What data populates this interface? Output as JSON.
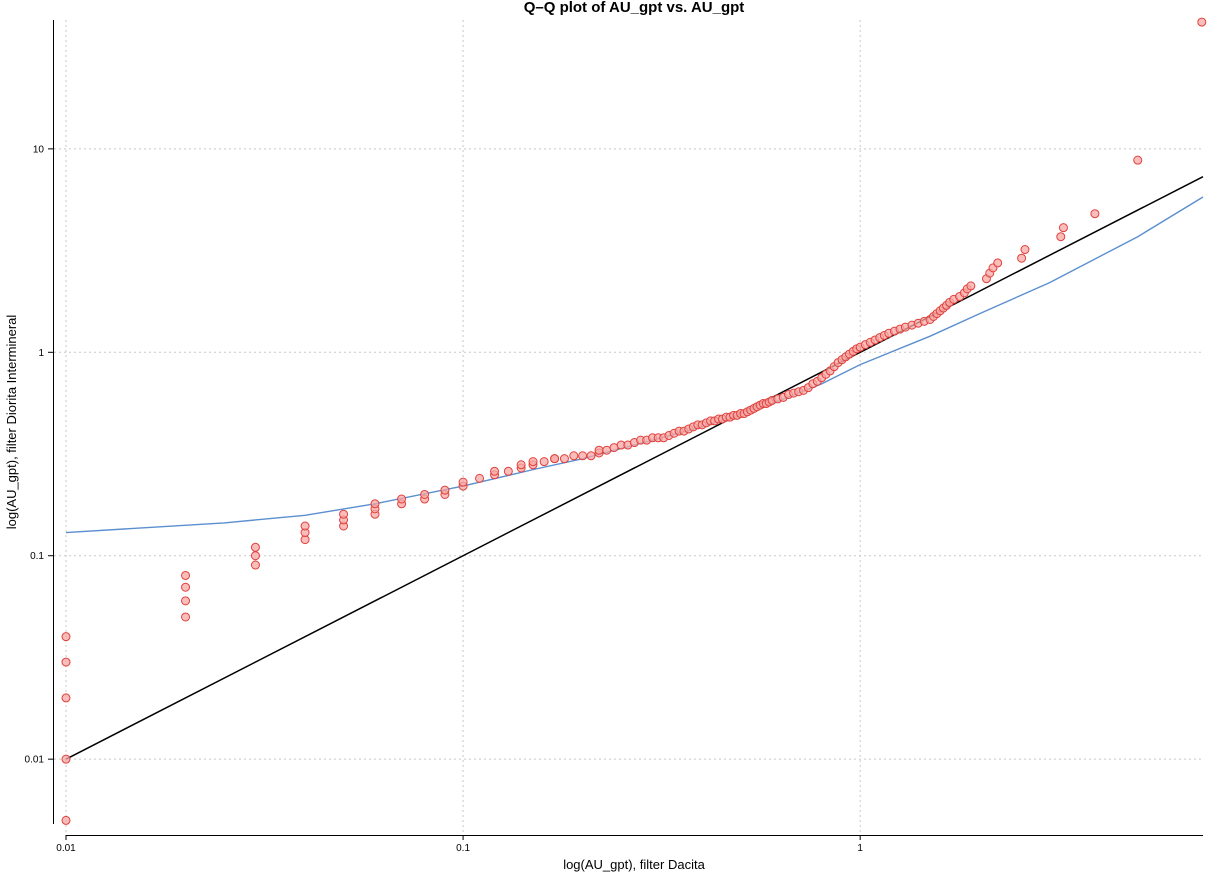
{
  "chart_data": {
    "type": "scatter",
    "title": "Q–Q plot of AU_gpt vs. AU_gpt",
    "xlabel": "log(AU_gpt), filter Dacita",
    "ylabel": "log(AU_gpt), filter Diorita Intermineral",
    "xscale": "log",
    "yscale": "log",
    "xlim": [
      0.01,
      7.3
    ],
    "ylim": [
      0.0048,
      43
    ],
    "grid": true,
    "x_ticks": [
      {
        "value": 0.01,
        "label": "0.01"
      },
      {
        "value": 0.1,
        "label": "0.1"
      },
      {
        "value": 1,
        "label": "1"
      }
    ],
    "y_ticks": [
      {
        "value": 0.01,
        "label": "0.01"
      },
      {
        "value": 0.1,
        "label": "0.1"
      },
      {
        "value": 1,
        "label": "1"
      },
      {
        "value": 10,
        "label": "10"
      }
    ],
    "marker_color": "#e0403c",
    "marker_fill": "#f7a8a4",
    "reference_line": {
      "color": "#000000",
      "points": [
        [
          0.01,
          0.01
        ],
        [
          7.3,
          7.3
        ]
      ]
    },
    "fit_line": {
      "color": "#5b8fcf",
      "x": [
        0.01,
        0.025,
        0.04,
        0.06,
        0.1,
        0.15,
        0.2,
        0.3,
        0.4,
        0.5,
        0.6,
        0.8,
        1.0,
        1.5,
        2.0,
        3.0,
        5.0,
        7.3
      ],
      "y": [
        0.13,
        0.145,
        0.158,
        0.18,
        0.22,
        0.265,
        0.3,
        0.37,
        0.43,
        0.5,
        0.56,
        0.7,
        0.87,
        1.2,
        1.55,
        2.2,
        3.7,
        5.8
      ]
    },
    "points": [
      [
        0.01,
        0.005
      ],
      [
        0.01,
        0.01
      ],
      [
        0.01,
        0.02
      ],
      [
        0.01,
        0.03
      ],
      [
        0.01,
        0.04
      ],
      [
        0.02,
        0.05
      ],
      [
        0.02,
        0.06
      ],
      [
        0.02,
        0.07
      ],
      [
        0.02,
        0.08
      ],
      [
        0.03,
        0.09
      ],
      [
        0.03,
        0.1
      ],
      [
        0.03,
        0.11
      ],
      [
        0.04,
        0.12
      ],
      [
        0.04,
        0.13
      ],
      [
        0.04,
        0.14
      ],
      [
        0.05,
        0.14
      ],
      [
        0.05,
        0.15
      ],
      [
        0.05,
        0.16
      ],
      [
        0.06,
        0.16
      ],
      [
        0.06,
        0.17
      ],
      [
        0.06,
        0.18
      ],
      [
        0.07,
        0.18
      ],
      [
        0.07,
        0.19
      ],
      [
        0.08,
        0.19
      ],
      [
        0.08,
        0.2
      ],
      [
        0.09,
        0.2
      ],
      [
        0.09,
        0.21
      ],
      [
        0.1,
        0.22
      ],
      [
        0.1,
        0.23
      ],
      [
        0.11,
        0.24
      ],
      [
        0.12,
        0.25
      ],
      [
        0.12,
        0.26
      ],
      [
        0.13,
        0.26
      ],
      [
        0.14,
        0.27
      ],
      [
        0.14,
        0.28
      ],
      [
        0.15,
        0.28
      ],
      [
        0.15,
        0.29
      ],
      [
        0.16,
        0.29
      ],
      [
        0.17,
        0.3
      ],
      [
        0.17,
        0.3
      ],
      [
        0.18,
        0.3
      ],
      [
        0.19,
        0.31
      ],
      [
        0.2,
        0.31
      ],
      [
        0.21,
        0.31
      ],
      [
        0.22,
        0.32
      ],
      [
        0.22,
        0.33
      ],
      [
        0.23,
        0.33
      ],
      [
        0.24,
        0.34
      ],
      [
        0.25,
        0.35
      ],
      [
        0.26,
        0.35
      ],
      [
        0.27,
        0.36
      ],
      [
        0.28,
        0.37
      ],
      [
        0.29,
        0.37
      ],
      [
        0.3,
        0.38
      ],
      [
        0.31,
        0.38
      ],
      [
        0.32,
        0.38
      ],
      [
        0.33,
        0.39
      ],
      [
        0.34,
        0.4
      ],
      [
        0.35,
        0.41
      ],
      [
        0.36,
        0.41
      ],
      [
        0.37,
        0.42
      ],
      [
        0.38,
        0.43
      ],
      [
        0.39,
        0.44
      ],
      [
        0.4,
        0.44
      ],
      [
        0.41,
        0.45
      ],
      [
        0.42,
        0.46
      ],
      [
        0.43,
        0.46
      ],
      [
        0.44,
        0.47
      ],
      [
        0.45,
        0.47
      ],
      [
        0.46,
        0.48
      ],
      [
        0.47,
        0.48
      ],
      [
        0.48,
        0.49
      ],
      [
        0.49,
        0.49
      ],
      [
        0.5,
        0.5
      ],
      [
        0.51,
        0.5
      ],
      [
        0.52,
        0.51
      ],
      [
        0.53,
        0.52
      ],
      [
        0.54,
        0.53
      ],
      [
        0.55,
        0.54
      ],
      [
        0.56,
        0.55
      ],
      [
        0.57,
        0.56
      ],
      [
        0.58,
        0.56
      ],
      [
        0.59,
        0.57
      ],
      [
        0.6,
        0.58
      ],
      [
        0.62,
        0.59
      ],
      [
        0.64,
        0.6
      ],
      [
        0.66,
        0.62
      ],
      [
        0.68,
        0.63
      ],
      [
        0.7,
        0.64
      ],
      [
        0.72,
        0.65
      ],
      [
        0.74,
        0.67
      ],
      [
        0.76,
        0.7
      ],
      [
        0.78,
        0.72
      ],
      [
        0.8,
        0.75
      ],
      [
        0.82,
        0.78
      ],
      [
        0.84,
        0.81
      ],
      [
        0.86,
        0.85
      ],
      [
        0.88,
        0.89
      ],
      [
        0.9,
        0.92
      ],
      [
        0.92,
        0.95
      ],
      [
        0.94,
        0.98
      ],
      [
        0.96,
        1.01
      ],
      [
        0.98,
        1.04
      ],
      [
        1.0,
        1.06
      ],
      [
        1.03,
        1.09
      ],
      [
        1.06,
        1.12
      ],
      [
        1.09,
        1.15
      ],
      [
        1.12,
        1.18
      ],
      [
        1.15,
        1.21
      ],
      [
        1.18,
        1.24
      ],
      [
        1.22,
        1.27
      ],
      [
        1.26,
        1.3
      ],
      [
        1.3,
        1.33
      ],
      [
        1.35,
        1.36
      ],
      [
        1.4,
        1.39
      ],
      [
        1.45,
        1.42
      ],
      [
        1.5,
        1.45
      ],
      [
        1.53,
        1.5
      ],
      [
        1.56,
        1.55
      ],
      [
        1.59,
        1.6
      ],
      [
        1.62,
        1.65
      ],
      [
        1.65,
        1.7
      ],
      [
        1.68,
        1.76
      ],
      [
        1.72,
        1.82
      ],
      [
        1.78,
        1.88
      ],
      [
        1.83,
        1.96
      ],
      [
        1.86,
        2.05
      ],
      [
        1.9,
        2.12
      ],
      [
        2.08,
        2.3
      ],
      [
        2.12,
        2.45
      ],
      [
        2.16,
        2.6
      ],
      [
        2.22,
        2.75
      ],
      [
        2.55,
        2.9
      ],
      [
        2.6,
        3.2
      ],
      [
        3.2,
        3.7
      ],
      [
        3.25,
        4.1
      ],
      [
        3.9,
        4.8
      ],
      [
        5.0,
        8.8
      ],
      [
        7.25,
        42.0
      ]
    ]
  }
}
